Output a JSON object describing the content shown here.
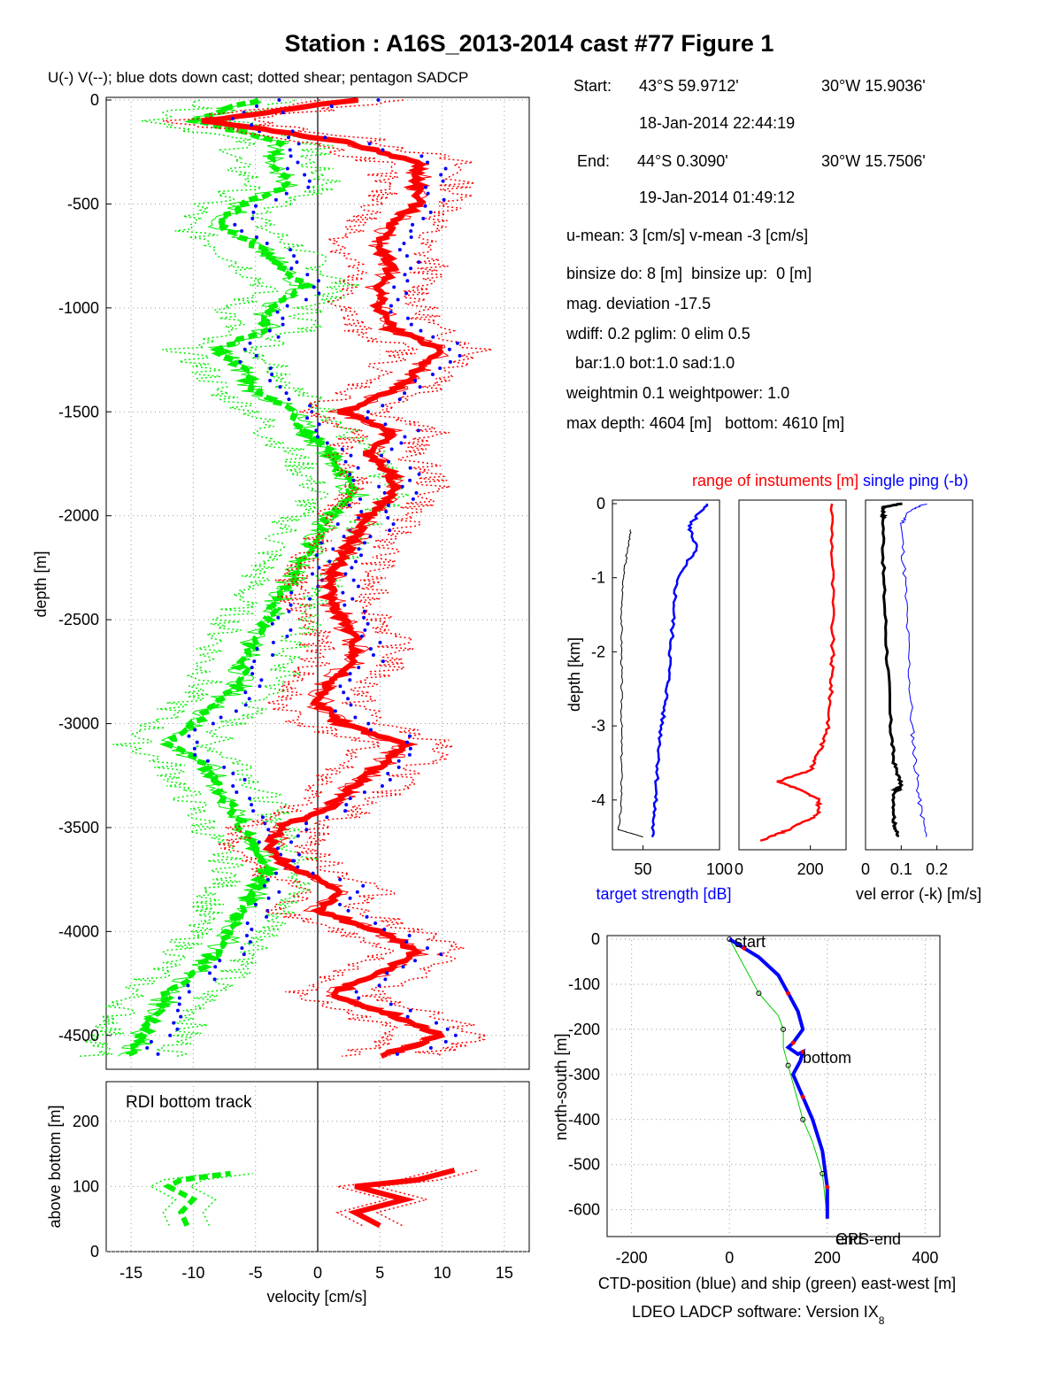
{
  "title": "Station : A16S_2013-2014 cast #77  Figure 1",
  "colors": {
    "u_component": "#ff0000",
    "v_component": "#00ee00",
    "down_cast_dots": "#0000ff",
    "target_strength": "#0000ff",
    "range": "#ff0000",
    "single_ping": "#0000ff",
    "vel_error": "#000000",
    "ctd_track": "#0000ff",
    "ship_track": "#00cc00"
  },
  "info": {
    "start_label": "Start:",
    "start_lat": "43°S 59.9712'",
    "start_lon": "30°W 15.9036'",
    "start_time": "18-Jan-2014 22:44:19",
    "end_label": "End:",
    "end_lat": "44°S  0.3090'",
    "end_lon": "30°W 15.7506'",
    "end_time": "19-Jan-2014 01:49:12",
    "means": "u-mean:   3 [cm/s]    v-mean  -3 [cm/s]",
    "binsize": "binsize do: 8 [m]  binsize up:  0 [m]",
    "magdev": "mag. deviation -17.5",
    "wdiff": "wdiff: 0.2  pglim: 0  elim 0.5",
    "weights": "  bar:1.0 bot:1.0 sad:1.0",
    "weightmin": "weightmin 0.1  weightpower: 1.0",
    "depths": "max depth: 4604 [m]   bottom: 4610 [m]"
  },
  "footer": "LDEO LADCP software: Version IX",
  "footer_sub": "8",
  "chart_data": [
    {
      "type": "line",
      "title": "U(-) V(--); blue dots down cast; dotted shear; pentagon SADCP",
      "ylabel": "depth [m]",
      "xlim": [
        -17,
        17
      ],
      "ylim": [
        -4650,
        0
      ],
      "xticks": [
        -15,
        -10,
        -5,
        0,
        5,
        10,
        15
      ],
      "yticks": [
        0,
        -500,
        -1000,
        -1500,
        -2000,
        -2500,
        -3000,
        -3500,
        -4000,
        -4500
      ],
      "grid": true,
      "series": [
        {
          "name": "U",
          "style": "solid",
          "depth": [
            0,
            -100,
            -200,
            -300,
            -400,
            -500,
            -600,
            -700,
            -800,
            -900,
            -1000,
            -1100,
            -1200,
            -1300,
            -1400,
            -1500,
            -1600,
            -1700,
            -1800,
            -1900,
            -2000,
            -2100,
            -2200,
            -2300,
            -2400,
            -2500,
            -2600,
            -2700,
            -2800,
            -2900,
            -3000,
            -3100,
            -3200,
            -3300,
            -3400,
            -3500,
            -3600,
            -3700,
            -3800,
            -3900,
            -4000,
            -4100,
            -4200,
            -4300,
            -4400,
            -4500,
            -4600
          ],
          "values": [
            3,
            -9,
            2,
            8,
            8,
            8,
            6,
            5,
            6,
            5,
            5,
            6,
            10,
            8,
            6,
            2,
            6,
            4,
            6,
            6,
            4,
            3,
            2,
            1,
            1,
            2,
            3,
            3,
            1,
            0,
            2,
            7,
            5,
            3,
            1,
            -3,
            -4,
            -2,
            2,
            0,
            5,
            8,
            5,
            1,
            6,
            10,
            5
          ]
        },
        {
          "name": "V",
          "style": "dashed",
          "depth": [
            0,
            -100,
            -200,
            -300,
            -400,
            -500,
            -600,
            -700,
            -800,
            -900,
            -1000,
            -1100,
            -1200,
            -1300,
            -1400,
            -1500,
            -1600,
            -1700,
            -1800,
            -1900,
            -2000,
            -2100,
            -2200,
            -2300,
            -2400,
            -2500,
            -2600,
            -2700,
            -2800,
            -2900,
            -3000,
            -3100,
            -3200,
            -3300,
            -3400,
            -3500,
            -3600,
            -3700,
            -3800,
            -3900,
            -4000,
            -4100,
            -4200,
            -4300,
            -4400,
            -4500,
            -4600
          ],
          "values": [
            -5,
            -10,
            -3,
            -4,
            -2,
            -6,
            -8,
            -5,
            -3,
            -1,
            -4,
            -4,
            -8,
            -6,
            -5,
            -2,
            -1,
            1,
            2,
            3,
            1,
            0,
            -1,
            -2,
            -3,
            -4,
            -5,
            -6,
            -6,
            -8,
            -10,
            -12,
            -9,
            -8,
            -7,
            -6,
            -5,
            -4,
            -5,
            -6,
            -7,
            -8,
            -10,
            -12,
            -13,
            -14,
            -15
          ]
        }
      ]
    },
    {
      "type": "line",
      "title": "RDI bottom track",
      "xlabel": "velocity [cm/s]",
      "ylabel": "above bottom [m]",
      "xlim": [
        -17,
        17
      ],
      "ylim": [
        0,
        250
      ],
      "xticks": [
        -15,
        -10,
        -5,
        0,
        5,
        10,
        15
      ],
      "yticks": [
        0,
        100,
        200
      ],
      "grid": true,
      "series": [
        {
          "name": "U",
          "style": "solid",
          "above_bottom": [
            40,
            60,
            80,
            100,
            110,
            125
          ],
          "values": [
            5,
            3,
            7,
            3,
            8,
            11
          ]
        },
        {
          "name": "V",
          "style": "dashed",
          "above_bottom": [
            40,
            60,
            80,
            100,
            110,
            120
          ],
          "values": [
            -10.5,
            -11,
            -10,
            -12,
            -11,
            -7
          ]
        }
      ]
    },
    {
      "type": "line",
      "xlabel": "target strength [dB]",
      "ylabel": "depth [km]",
      "xlim": [
        30,
        100
      ],
      "ylim": [
        -4.6,
        0
      ],
      "xticks": [
        50,
        100
      ],
      "yticks": [
        0,
        -1,
        -2,
        -3,
        -4
      ],
      "series": [
        {
          "name": "target strength",
          "depth": [
            0,
            -0.3,
            -0.6,
            -1,
            -1.5,
            -2,
            -2.5,
            -3,
            -3.5,
            -4,
            -4.5
          ],
          "values": [
            92,
            80,
            85,
            72,
            70,
            68,
            66,
            62,
            60,
            58,
            56
          ]
        },
        {
          "depth": [
            -0.35,
            -0.6,
            -1,
            -1.5,
            -2,
            -2.5,
            -3,
            -3.5,
            -4,
            -4.4,
            -4.5
          ],
          "values": [
            42,
            40,
            37,
            36,
            36,
            36,
            36,
            36,
            36,
            34,
            50
          ]
        }
      ]
    },
    {
      "type": "line",
      "title": "range of instuments [m]",
      "ylim": [
        -4.6,
        0
      ],
      "xlim": [
        0,
        300
      ],
      "xticks": [
        0,
        200
      ],
      "series": [
        {
          "name": "range",
          "depth": [
            0,
            -1,
            -2,
            -2.5,
            -3,
            -3.3,
            -3.6,
            -3.75,
            -3.85,
            -4,
            -4.2,
            -4.4,
            -4.55
          ],
          "values": [
            260,
            262,
            262,
            258,
            250,
            230,
            200,
            110,
            165,
            225,
            220,
            140,
            60
          ]
        }
      ]
    },
    {
      "type": "line",
      "title": "single ping (-b)",
      "xlabel": "vel error (-k) [m/s]",
      "ylim": [
        -4.6,
        0
      ],
      "xlim": [
        0,
        0.3
      ],
      "xticks": [
        0,
        0.1,
        0.2
      ],
      "series": [
        {
          "name": "vel error",
          "depth": [
            0,
            -0.05,
            -0.2,
            -1,
            -2,
            -3,
            -3.5,
            -3.8,
            -3.9,
            -4.3,
            -4.5
          ],
          "values": [
            0.1,
            0.05,
            0.05,
            0.05,
            0.06,
            0.07,
            0.08,
            0.1,
            0.08,
            0.08,
            0.09
          ]
        },
        {
          "name": "single ping",
          "depth": [
            0,
            -0.1,
            -0.3,
            -1,
            -2,
            -3,
            -3.5,
            -4,
            -4.5
          ],
          "values": [
            0.17,
            0.12,
            0.1,
            0.11,
            0.12,
            0.13,
            0.14,
            0.15,
            0.17
          ]
        }
      ]
    },
    {
      "type": "line",
      "xlabel": "CTD-position (blue) and ship (green) east-west [m]",
      "ylabel": "north-south [m]",
      "xlim": [
        -250,
        430
      ],
      "ylim": [
        -640,
        0
      ],
      "xticks": [
        -200,
        0,
        200,
        400
      ],
      "yticks": [
        0,
        -100,
        -200,
        -300,
        -400,
        -500,
        -600
      ],
      "grid": true,
      "annotations": [
        "start",
        "bottom",
        "GPS-end",
        "end"
      ],
      "series": [
        {
          "name": "CTD",
          "ew": [
            0,
            30,
            60,
            100,
            120,
            140,
            150,
            130,
            120,
            140,
            150,
            145,
            130,
            150,
            170,
            190,
            200,
            200
          ],
          "ns": [
            0,
            -20,
            -40,
            -80,
            -120,
            -160,
            -200,
            -230,
            -240,
            -255,
            -250,
            -270,
            -300,
            -350,
            -400,
            -470,
            -550,
            -620
          ]
        },
        {
          "name": "ship",
          "ew": [
            0,
            20,
            60,
            100,
            110,
            110,
            120,
            130,
            150,
            170,
            190,
            200
          ],
          "ns": [
            0,
            -40,
            -120,
            -170,
            -200,
            -240,
            -280,
            -320,
            -400,
            -450,
            -520,
            -620
          ]
        }
      ]
    }
  ]
}
